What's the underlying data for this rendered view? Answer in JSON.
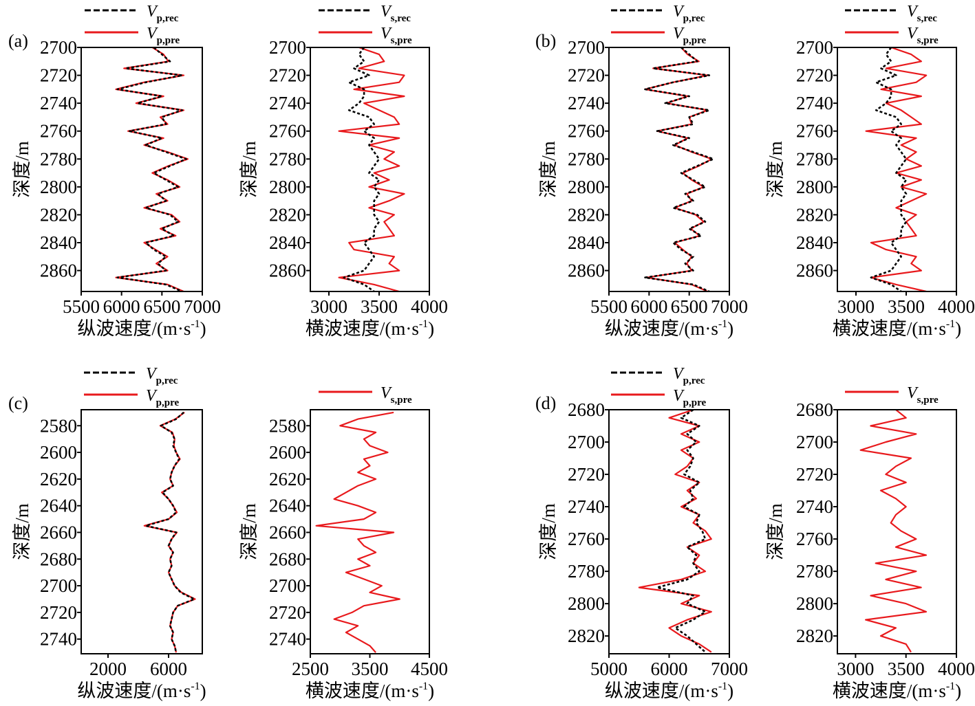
{
  "colors": {
    "recorded": "#000000",
    "predicted": "#e8191c"
  },
  "chart_data": [
    {
      "panel": "(a)",
      "type": "line",
      "orientation": "vertical-depth",
      "xlabel": "纵波速度/(m·s-1)",
      "ylabel": "深度/m",
      "xlim": [
        5500,
        7000
      ],
      "xticks": [
        5500,
        6000,
        6500,
        7000
      ],
      "ylim": [
        2700,
        2875
      ],
      "yticks": [
        2700,
        2720,
        2740,
        2760,
        2780,
        2800,
        2820,
        2840,
        2860
      ],
      "y_inverted": true,
      "depth": [
        2700,
        2705,
        2710,
        2715,
        2720,
        2725,
        2730,
        2735,
        2740,
        2745,
        2750,
        2755,
        2760,
        2765,
        2770,
        2775,
        2780,
        2785,
        2790,
        2795,
        2800,
        2805,
        2810,
        2815,
        2820,
        2825,
        2830,
        2835,
        2840,
        2845,
        2850,
        2855,
        2860,
        2865,
        2870,
        2875
      ],
      "series": [
        {
          "name": "Vp,rec",
          "symbol": "V",
          "sub": "p,rec",
          "style": "dashed-black",
          "values": [
            6400,
            6500,
            6600,
            6050,
            6750,
            6300,
            5950,
            6500,
            6200,
            6750,
            6500,
            6550,
            6100,
            6500,
            6300,
            6550,
            6800,
            6600,
            6400,
            6550,
            6700,
            6450,
            6550,
            6300,
            6600,
            6700,
            6500,
            6650,
            6300,
            6400,
            6550,
            6450,
            6550,
            5950,
            6550,
            6750
          ]
        },
        {
          "name": "Vp,pre",
          "symbol": "V",
          "sub": "p,pre",
          "style": "solid-red",
          "values": [
            6380,
            6520,
            6580,
            6030,
            6770,
            6280,
            5930,
            6520,
            6180,
            6770,
            6480,
            6570,
            6080,
            6520,
            6280,
            6570,
            6820,
            6580,
            6380,
            6570,
            6720,
            6430,
            6570,
            6280,
            6620,
            6720,
            6480,
            6670,
            6280,
            6420,
            6570,
            6430,
            6570,
            5930,
            6570,
            6770
          ]
        }
      ]
    },
    {
      "panel": "",
      "type": "line",
      "orientation": "vertical-depth",
      "xlabel": "横波速度/(m·s-1)",
      "ylabel": "深度/m",
      "xlim": [
        2815,
        4000
      ],
      "xticks": [
        3000,
        3500,
        4000
      ],
      "ylim": [
        2700,
        2875
      ],
      "yticks": [
        2700,
        2720,
        2740,
        2760,
        2780,
        2800,
        2820,
        2840,
        2860
      ],
      "y_inverted": true,
      "depth": [
        2700,
        2705,
        2710,
        2715,
        2720,
        2725,
        2730,
        2735,
        2740,
        2745,
        2750,
        2755,
        2760,
        2765,
        2770,
        2775,
        2780,
        2785,
        2790,
        2795,
        2800,
        2805,
        2810,
        2815,
        2820,
        2825,
        2830,
        2835,
        2840,
        2845,
        2850,
        2855,
        2860,
        2865,
        2870,
        2875
      ],
      "series": [
        {
          "name": "Vs,rec",
          "symbol": "V",
          "sub": "s,rec",
          "style": "dashed-black",
          "values": [
            3350,
            3300,
            3350,
            3250,
            3400,
            3200,
            3350,
            3350,
            3300,
            3200,
            3400,
            3450,
            3350,
            3450,
            3400,
            3450,
            3500,
            3450,
            3400,
            3500,
            3450,
            3500,
            3450,
            3450,
            3450,
            3500,
            3450,
            3450,
            3350,
            3400,
            3450,
            3400,
            3350,
            3150,
            3350,
            3450
          ]
        },
        {
          "name": "Vs,pre",
          "symbol": "V",
          "sub": "s,pre",
          "style": "solid-red",
          "values": [
            3300,
            3500,
            3550,
            3300,
            3750,
            3700,
            3250,
            3750,
            3350,
            3500,
            3650,
            3700,
            3100,
            3700,
            3400,
            3650,
            3550,
            3700,
            3450,
            3600,
            3400,
            3750,
            3600,
            3400,
            3650,
            3550,
            3600,
            3650,
            3200,
            3250,
            3650,
            3600,
            3700,
            3100,
            3450,
            3700
          ]
        }
      ]
    },
    {
      "panel": "(b)",
      "type": "line",
      "orientation": "vertical-depth",
      "xlabel": "纵波速度/(m·s-1)",
      "ylabel": "深度/m",
      "xlim": [
        5500,
        7000
      ],
      "xticks": [
        5500,
        6000,
        6500,
        7000
      ],
      "ylim": [
        2700,
        2875
      ],
      "yticks": [
        2700,
        2720,
        2740,
        2760,
        2780,
        2800,
        2820,
        2840,
        2860
      ],
      "y_inverted": true,
      "depth": [
        2700,
        2705,
        2710,
        2715,
        2720,
        2725,
        2730,
        2735,
        2740,
        2745,
        2750,
        2755,
        2760,
        2765,
        2770,
        2775,
        2780,
        2785,
        2790,
        2795,
        2800,
        2805,
        2810,
        2815,
        2820,
        2825,
        2830,
        2835,
        2840,
        2845,
        2850,
        2855,
        2860,
        2865,
        2870,
        2875
      ],
      "series": [
        {
          "name": "Vp,rec",
          "symbol": "V",
          "sub": "p,rec",
          "style": "dashed-black",
          "values": [
            6400,
            6500,
            6600,
            6050,
            6750,
            6300,
            5950,
            6500,
            6200,
            6750,
            6500,
            6550,
            6100,
            6500,
            6300,
            6550,
            6800,
            6600,
            6400,
            6550,
            6700,
            6450,
            6550,
            6300,
            6600,
            6700,
            6500,
            6650,
            6300,
            6400,
            6550,
            6450,
            6550,
            5950,
            6550,
            6750
          ]
        },
        {
          "name": "Vp,pre",
          "symbol": "V",
          "sub": "p,pre",
          "style": "solid-red",
          "values": [
            6400,
            6480,
            6620,
            6050,
            6730,
            6300,
            5950,
            6480,
            6220,
            6730,
            6500,
            6530,
            6100,
            6480,
            6320,
            6530,
            6780,
            6620,
            6420,
            6530,
            6680,
            6470,
            6530,
            6320,
            6580,
            6680,
            6520,
            6630,
            6320,
            6420,
            6530,
            6470,
            6530,
            5970,
            6530,
            6730
          ]
        }
      ]
    },
    {
      "panel": "",
      "type": "line",
      "orientation": "vertical-depth",
      "xlabel": "横波速度/(m·s-1)",
      "ylabel": "深度/m",
      "xlim": [
        2815,
        4000
      ],
      "xticks": [
        3000,
        3500,
        4000
      ],
      "ylim": [
        2700,
        2875
      ],
      "yticks": [
        2700,
        2720,
        2740,
        2760,
        2780,
        2800,
        2820,
        2840,
        2860
      ],
      "y_inverted": true,
      "depth": [
        2700,
        2705,
        2710,
        2715,
        2720,
        2725,
        2730,
        2735,
        2740,
        2745,
        2750,
        2755,
        2760,
        2765,
        2770,
        2775,
        2780,
        2785,
        2790,
        2795,
        2800,
        2805,
        2810,
        2815,
        2820,
        2825,
        2830,
        2835,
        2840,
        2845,
        2850,
        2855,
        2860,
        2865,
        2870,
        2875
      ],
      "series": [
        {
          "name": "Vs,rec",
          "symbol": "V",
          "sub": "s,rec",
          "style": "dashed-black",
          "values": [
            3350,
            3300,
            3350,
            3250,
            3400,
            3200,
            3350,
            3350,
            3300,
            3200,
            3400,
            3450,
            3350,
            3450,
            3400,
            3450,
            3500,
            3450,
            3400,
            3500,
            3450,
            3500,
            3450,
            3450,
            3450,
            3500,
            3450,
            3450,
            3350,
            3400,
            3450,
            3400,
            3350,
            3150,
            3350,
            3450
          ]
        },
        {
          "name": "Vs,pre",
          "symbol": "V",
          "sub": "s,pre",
          "style": "solid-red",
          "values": [
            3350,
            3550,
            3650,
            3300,
            3700,
            3600,
            3250,
            3650,
            3300,
            3450,
            3550,
            3650,
            3100,
            3600,
            3450,
            3600,
            3500,
            3650,
            3400,
            3650,
            3450,
            3700,
            3550,
            3400,
            3600,
            3500,
            3550,
            3600,
            3150,
            3300,
            3600,
            3550,
            3650,
            3150,
            3400,
            3700
          ]
        }
      ]
    },
    {
      "panel": "(c)",
      "type": "line",
      "orientation": "vertical-depth",
      "xlabel": "纵波速度/(m·s-1)",
      "ylabel": "深度/m",
      "xlim": [
        227,
        8227
      ],
      "xticks": [
        2000,
        6000
      ],
      "ylim": [
        2568,
        2751
      ],
      "yticks": [
        2580,
        2600,
        2620,
        2640,
        2660,
        2680,
        2700,
        2720,
        2740
      ],
      "y_inverted": true,
      "depth": [
        2570,
        2575,
        2580,
        2585,
        2590,
        2595,
        2600,
        2605,
        2610,
        2615,
        2620,
        2625,
        2630,
        2635,
        2640,
        2645,
        2650,
        2655,
        2660,
        2665,
        2670,
        2675,
        2680,
        2685,
        2690,
        2695,
        2700,
        2705,
        2710,
        2715,
        2720,
        2725,
        2730,
        2735,
        2740,
        2745,
        2750
      ],
      "series": [
        {
          "name": "Vp,rec",
          "symbol": "V",
          "sub": "p,rec",
          "style": "dashed-black",
          "values": [
            7000,
            6500,
            5500,
            6200,
            6400,
            6300,
            6500,
            6700,
            6400,
            6200,
            6100,
            6300,
            5600,
            6000,
            6300,
            6500,
            6000,
            4500,
            6500,
            6200,
            6000,
            6300,
            6100,
            6200,
            6000,
            6200,
            6400,
            6800,
            7700,
            6600,
            6300,
            6200,
            6100,
            6300,
            6200,
            6400,
            6500
          ]
        },
        {
          "name": "Vp,pre",
          "symbol": "V",
          "sub": "p,pre",
          "style": "solid-red",
          "values": [
            7050,
            6450,
            5450,
            6250,
            6400,
            6350,
            6500,
            6750,
            6400,
            6200,
            6100,
            6300,
            5550,
            6000,
            6300,
            6550,
            6000,
            4400,
            6550,
            6200,
            6000,
            6300,
            6100,
            6200,
            6000,
            6200,
            6400,
            6850,
            7750,
            6600,
            6300,
            6200,
            6100,
            6300,
            6200,
            6400,
            6500
          ]
        }
      ]
    },
    {
      "panel": "",
      "type": "line",
      "orientation": "vertical-depth",
      "xlabel": "横波速度/(m·s-1)",
      "ylabel": "深度/m",
      "xlim": [
        2500,
        4500
      ],
      "xticks": [
        2500,
        3500,
        4500
      ],
      "ylim": [
        2568,
        2751
      ],
      "yticks": [
        2580,
        2600,
        2620,
        2640,
        2660,
        2680,
        2700,
        2720,
        2740
      ],
      "y_inverted": true,
      "depth": [
        2570,
        2575,
        2580,
        2585,
        2590,
        2595,
        2600,
        2605,
        2610,
        2615,
        2620,
        2625,
        2630,
        2635,
        2640,
        2645,
        2650,
        2655,
        2660,
        2665,
        2670,
        2675,
        2680,
        2685,
        2690,
        2695,
        2700,
        2705,
        2710,
        2715,
        2720,
        2725,
        2730,
        2735,
        2740,
        2745,
        2750
      ],
      "series": [
        {
          "name": "Vs,pre",
          "symbol": "V",
          "sub": "s,pre",
          "style": "solid-red",
          "values": [
            3900,
            3300,
            3000,
            3600,
            3400,
            3500,
            3800,
            3400,
            3500,
            3300,
            3600,
            3300,
            3100,
            2900,
            3300,
            3600,
            3400,
            2600,
            3900,
            3300,
            3400,
            3600,
            3300,
            3500,
            3100,
            3400,
            3700,
            3500,
            4000,
            3400,
            3200,
            2900,
            3300,
            3100,
            3300,
            3500,
            3600
          ]
        }
      ]
    },
    {
      "panel": "(d)",
      "type": "line",
      "orientation": "vertical-depth",
      "xlabel": "纵波速度/(m·s-1)",
      "ylabel": "深度/m",
      "xlim": [
        5000,
        7000
      ],
      "xticks": [
        5000,
        6000,
        7000
      ],
      "ylim": [
        2680,
        2831
      ],
      "yticks": [
        2680,
        2700,
        2720,
        2740,
        2760,
        2780,
        2800,
        2820
      ],
      "y_inverted": true,
      "depth": [
        2680,
        2685,
        2690,
        2695,
        2700,
        2705,
        2710,
        2715,
        2720,
        2725,
        2730,
        2735,
        2740,
        2745,
        2750,
        2755,
        2760,
        2765,
        2770,
        2775,
        2780,
        2785,
        2790,
        2795,
        2800,
        2805,
        2810,
        2815,
        2820,
        2825,
        2830
      ],
      "series": [
        {
          "name": "Vp,rec",
          "symbol": "V",
          "sub": "p,rec",
          "style": "dashed-black",
          "values": [
            6400,
            6200,
            6500,
            6300,
            6450,
            6300,
            6400,
            6350,
            6250,
            6500,
            6350,
            6400,
            6250,
            6500,
            6450,
            6550,
            6600,
            6300,
            6450,
            6400,
            6500,
            6300,
            5800,
            6400,
            6300,
            6600,
            6400,
            6100,
            6300,
            6450,
            6600
          ]
        },
        {
          "name": "Vp,pre",
          "symbol": "V",
          "sub": "p,pre",
          "style": "solid-red",
          "values": [
            6400,
            6000,
            6500,
            6200,
            6500,
            6200,
            6400,
            6300,
            6100,
            6500,
            6300,
            6450,
            6200,
            6500,
            6400,
            6600,
            6700,
            6300,
            6500,
            6400,
            6600,
            6200,
            5500,
            6500,
            6200,
            6700,
            6300,
            6000,
            6200,
            6500,
            6700
          ]
        }
      ]
    },
    {
      "panel": "",
      "type": "line",
      "orientation": "vertical-depth",
      "xlabel": "横波速度/(m·s-1)",
      "ylabel": "深度/m",
      "xlim": [
        2820,
        4000
      ],
      "xticks": [
        3000,
        3500,
        4000
      ],
      "ylim": [
        2680,
        2831
      ],
      "yticks": [
        2680,
        2700,
        2720,
        2740,
        2760,
        2780,
        2800,
        2820
      ],
      "y_inverted": true,
      "depth": [
        2680,
        2685,
        2690,
        2695,
        2700,
        2705,
        2710,
        2715,
        2720,
        2725,
        2730,
        2735,
        2740,
        2745,
        2750,
        2755,
        2760,
        2765,
        2770,
        2775,
        2780,
        2785,
        2790,
        2795,
        2800,
        2805,
        2810,
        2815,
        2820,
        2825,
        2830
      ],
      "series": [
        {
          "name": "Vs,pre",
          "symbol": "V",
          "sub": "s,pre",
          "style": "solid-red",
          "values": [
            3400,
            3500,
            3150,
            3600,
            3300,
            3050,
            3550,
            3400,
            3300,
            3500,
            3250,
            3400,
            3500,
            3400,
            3350,
            3450,
            3600,
            3400,
            3700,
            3200,
            3600,
            3300,
            3650,
            3150,
            3500,
            3700,
            3100,
            3400,
            3250,
            3500,
            3550
          ]
        }
      ]
    }
  ]
}
